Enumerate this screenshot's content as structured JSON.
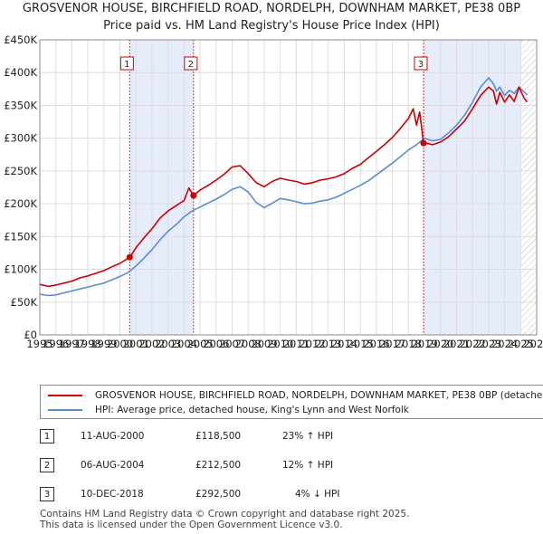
{
  "header": {
    "title_line1": "GROSVENOR HOUSE, BIRCHFIELD ROAD, NORDELPH, DOWNHAM MARKET, PE38 0BP",
    "title_line2": "Price paid vs. HM Land Registry's House Price Index (HPI)"
  },
  "chart_data": {
    "type": "line",
    "title": "Price paid vs. HM Land Registry's House Price Index (HPI)",
    "xlim": [
      1995,
      2026
    ],
    "ylim": [
      0,
      450000
    ],
    "yticks": [
      0,
      50000,
      100000,
      150000,
      200000,
      250000,
      300000,
      350000,
      400000,
      450000
    ],
    "ytick_labels": [
      "£0",
      "£50K",
      "£100K",
      "£150K",
      "£200K",
      "£250K",
      "£300K",
      "£350K",
      "£400K",
      "£450K"
    ],
    "xticks": [
      1995,
      1996,
      1997,
      1998,
      1999,
      2000,
      2001,
      2002,
      2003,
      2004,
      2005,
      2006,
      2007,
      2008,
      2009,
      2010,
      2011,
      2012,
      2013,
      2014,
      2015,
      2016,
      2017,
      2018,
      2019,
      2020,
      2021,
      2022,
      2023,
      2024,
      2025,
      2026
    ],
    "grid": true,
    "colors": {
      "property": "#cc0000",
      "hpi": "#5b8ecc",
      "shade": "#e6ecfa",
      "vline": "#cc0000"
    },
    "shaded_ranges": [
      [
        2000.61,
        2004.59
      ],
      [
        2018.94,
        2025.0
      ]
    ],
    "hatch_from": 2025.0,
    "series": [
      {
        "name": "GROSVENOR HOUSE, BIRCHFIELD ROAD, NORDELPH, DOWNHAM MARKET, PE38 0BP (detached house)",
        "key": "property",
        "x": [
          1995,
          1995.5,
          1996,
          1996.5,
          1997,
          1997.5,
          1998,
          1998.5,
          1999,
          1999.5,
          2000,
          2000.61,
          2001,
          2001.5,
          2002,
          2002.5,
          2003,
          2003.5,
          2004,
          2004.3,
          2004.59,
          2005,
          2005.5,
          2006,
          2006.5,
          2007,
          2007.5,
          2008,
          2008.5,
          2009,
          2009.5,
          2010,
          2010.5,
          2011,
          2011.5,
          2012,
          2012.5,
          2013,
          2013.5,
          2014,
          2014.5,
          2015,
          2015.5,
          2016,
          2016.5,
          2017,
          2017.5,
          2018,
          2018.3,
          2018.5,
          2018.7,
          2018.94,
          2019,
          2019.5,
          2020,
          2020.5,
          2021,
          2021.5,
          2022,
          2022.5,
          2023,
          2023.3,
          2023.5,
          2023.7,
          2024,
          2024.3,
          2024.6,
          2024.9,
          2025.2,
          2025.4
        ],
        "values": [
          77000,
          74000,
          76000,
          79000,
          82000,
          87000,
          90000,
          94000,
          98000,
          104000,
          109000,
          118500,
          133000,
          148000,
          162000,
          178000,
          189000,
          197000,
          205000,
          224000,
          212500,
          221000,
          228000,
          236000,
          245000,
          256000,
          258000,
          246000,
          232000,
          226000,
          234000,
          239000,
          236000,
          234000,
          230000,
          232000,
          236000,
          238000,
          241000,
          246000,
          254000,
          260000,
          270000,
          280000,
          290000,
          301000,
          315000,
          330000,
          345000,
          320000,
          340000,
          292500,
          293000,
          290000,
          294000,
          302000,
          314000,
          326000,
          345000,
          365000,
          378000,
          372000,
          352000,
          370000,
          355000,
          366000,
          356000,
          378000,
          362000,
          355000
        ]
      },
      {
        "name": "HPI: Average price, detached house, King's Lynn and West Norfolk",
        "key": "hpi",
        "x": [
          1995,
          1995.5,
          1996,
          1996.5,
          1997,
          1997.5,
          1998,
          1998.5,
          1999,
          1999.5,
          2000,
          2000.5,
          2001,
          2001.5,
          2002,
          2002.5,
          2003,
          2003.5,
          2004,
          2004.5,
          2005,
          2005.5,
          2006,
          2006.5,
          2007,
          2007.5,
          2008,
          2008.5,
          2009,
          2009.5,
          2010,
          2010.5,
          2011,
          2011.5,
          2012,
          2012.5,
          2013,
          2013.5,
          2014,
          2014.5,
          2015,
          2015.5,
          2016,
          2016.5,
          2017,
          2017.5,
          2018,
          2018.5,
          2019,
          2019.5,
          2020,
          2020.5,
          2021,
          2021.5,
          2022,
          2022.5,
          2023,
          2023.3,
          2023.5,
          2023.7,
          2024,
          2024.3,
          2024.6,
          2024.9,
          2025.2,
          2025.4
        ],
        "values": [
          62000,
          60000,
          61000,
          64000,
          67000,
          70000,
          73000,
          76000,
          79000,
          84000,
          89000,
          95000,
          105000,
          117000,
          130000,
          145000,
          158000,
          168000,
          180000,
          189000,
          195000,
          201000,
          207000,
          214000,
          222000,
          226000,
          218000,
          202000,
          194000,
          201000,
          208000,
          206000,
          203000,
          200000,
          201000,
          204000,
          206000,
          210000,
          216000,
          222000,
          228000,
          235000,
          244000,
          253000,
          262000,
          272000,
          282000,
          290000,
          300000,
          296000,
          298000,
          308000,
          320000,
          335000,
          355000,
          378000,
          392000,
          383000,
          372000,
          378000,
          365000,
          373000,
          368000,
          378000,
          371000,
          366000
        ]
      }
    ],
    "markers": [
      {
        "label": "1",
        "x": 2000.61,
        "value": 118500
      },
      {
        "label": "2",
        "x": 2004.59,
        "value": 212500
      },
      {
        "label": "3",
        "x": 2018.94,
        "value": 292500
      }
    ]
  },
  "legend": {
    "property_label": "GROSVENOR HOUSE, BIRCHFIELD ROAD, NORDELPH, DOWNHAM MARKET, PE38 0BP (detached house)",
    "hpi_label": "HPI: Average price, detached house, King's Lynn and West Norfolk"
  },
  "sales": [
    {
      "num": "1",
      "date": "11-AUG-2000",
      "price": "£118,500",
      "hpi": "23% ↑ HPI"
    },
    {
      "num": "2",
      "date": "06-AUG-2004",
      "price": "£212,500",
      "hpi": "12% ↑ HPI"
    },
    {
      "num": "3",
      "date": "10-DEC-2018",
      "price": "£292,500",
      "hpi": "4% ↓ HPI"
    }
  ],
  "footer": {
    "line1": "Contains HM Land Registry data © Crown copyright and database right 2025.",
    "line2": "This data is licensed under the Open Government Licence v3.0."
  }
}
